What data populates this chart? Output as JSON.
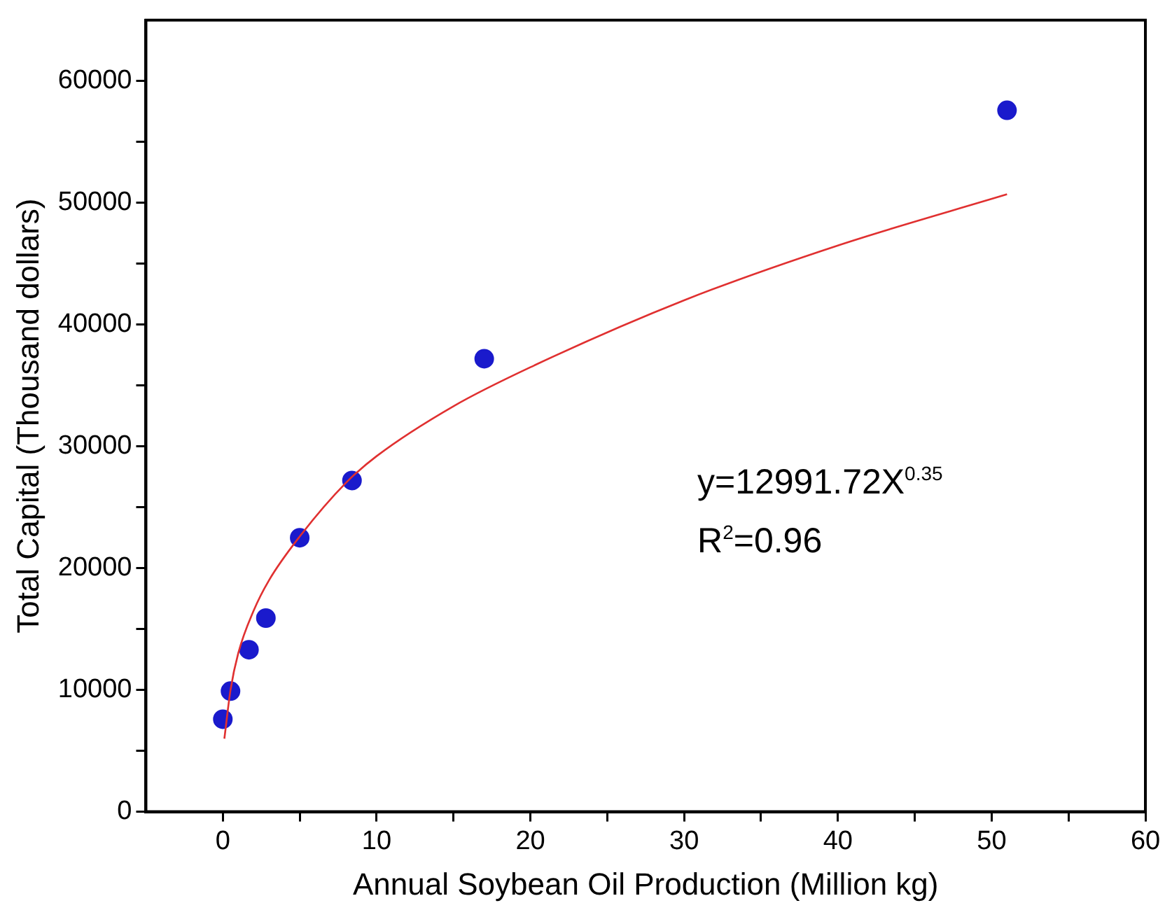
{
  "chart_data": {
    "type": "scatter",
    "xlabel": "Annual Soybean Oil Production (Million kg)",
    "ylabel": "Total Capital (Thousand dollars)",
    "series": [
      {
        "color": "#1a1acc",
        "marker": "circle",
        "x": [
          0,
          0.5,
          1.7,
          2.8,
          5,
          8.4,
          17,
          51
        ],
        "values": [
          7600,
          9900,
          13300,
          15900,
          22500,
          27200,
          37200,
          57600
        ]
      },
      {
        "type": "line",
        "marker": "none",
        "color": "#e03030",
        "x": [
          0.1,
          0.5,
          1,
          2,
          3,
          5,
          8,
          10,
          15,
          20,
          30,
          40,
          51
        ],
        "values": [
          6000,
          10000,
          13000,
          16500,
          19000,
          22600,
          27000,
          29200,
          33300,
          36500,
          42000,
          46500,
          50700
        ]
      }
    ],
    "annotations": [
      "y=12991.72X$^{0.35}$",
      "R$^{2}$=0.96"
    ],
    "xlim": [
      -5,
      60
    ],
    "xticks": [
      0,
      {
        "value": 5,
        "label": null
      },
      10,
      {
        "value": 15,
        "label": null
      },
      20,
      {
        "value": 25,
        "label": null
      },
      30,
      {
        "value": 35,
        "label": null
      },
      40,
      {
        "value": 45,
        "label": null
      },
      50,
      {
        "value": 55,
        "label": null
      },
      60
    ],
    "ylim": [
      0,
      65000
    ],
    "yticks": [
      0,
      {
        "value": 5000,
        "label": null
      },
      10000,
      {
        "value": 15000,
        "label": null
      },
      20000,
      {
        "value": 25000,
        "label": null
      },
      30000,
      {
        "value": 35000,
        "label": null
      },
      40000,
      {
        "value": 45000,
        "label": null
      },
      50000,
      {
        "value": 55000,
        "label": null
      },
      60000
    ],
    "grid": false,
    "legend": false
  }
}
